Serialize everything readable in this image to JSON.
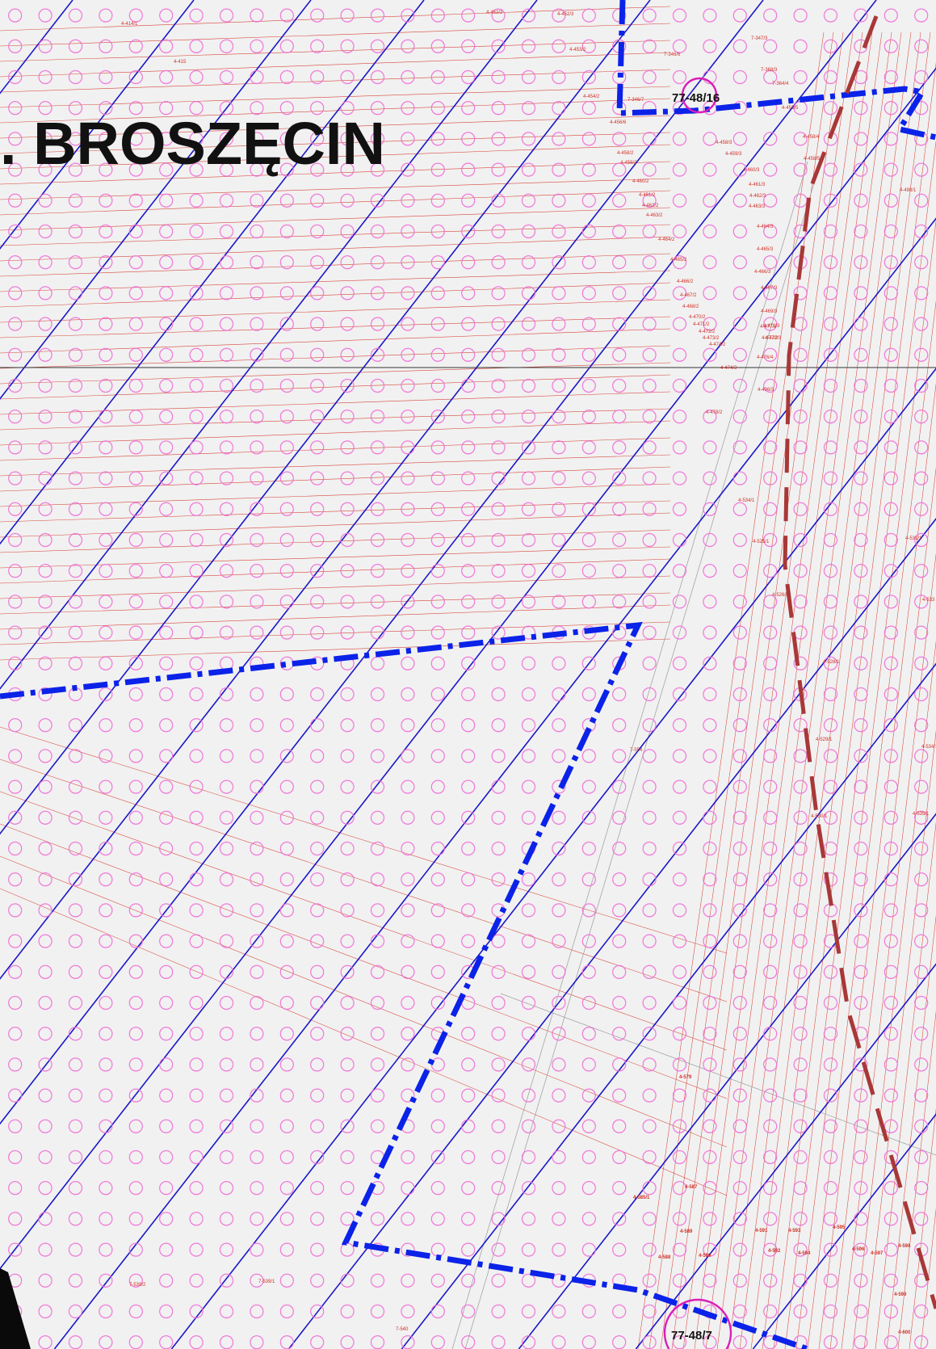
{
  "map": {
    "title": ". BROSZĘCIN",
    "colors": {
      "background": "#f1f1f1",
      "circle_pattern": "#f06bd6",
      "hatch_lines": "#1b17c8",
      "boundary_dash_dot": "#0b22e8",
      "boundary_dashed": "#a83838",
      "parcel_lines": "#d8473c",
      "marker_circle": "#d81fb8",
      "text": "#111111"
    },
    "markers": [
      {
        "label": "77-48/16"
      },
      {
        "label": "77-48/7"
      }
    ],
    "parcel_labels": [
      "4-414/1",
      "4-415",
      "4-452/2",
      "4-452/3",
      "4-453/2",
      "4-454/2",
      "7-346/6",
      "7-346/7",
      "7-347/3",
      "4-456/6",
      "4-456/5",
      "7-368/3",
      "7-364/4",
      "4-458/3",
      "4-459/3",
      "4-458/2",
      "4-459/2",
      "4-460/2",
      "4-461/2",
      "4-462/2",
      "4-463/2",
      "4-464/2",
      "4-465/2",
      "4-466/2",
      "4-467/2",
      "4-468/2",
      "4-470/2",
      "4-471/2",
      "4-472/2",
      "4-473/2",
      "4-474/2",
      "4-458/4",
      "4-458/5",
      "4-460/3",
      "4-461/3",
      "4-462/3",
      "4-463/3",
      "4-464/3",
      "4-465/3",
      "4-466/3",
      "4-467/3",
      "4-469/3",
      "4-471/3",
      "4-472/3",
      "4-474/3",
      "4-476/4",
      "4-477/2",
      "4-477/3",
      "4-478/2",
      "4-496/3",
      "4-498/1",
      "4-534/1",
      "4-525/1",
      "4-526/1",
      "4-528/1",
      "4-529/1",
      "4-530/1",
      "4-531/1",
      "4-533",
      "4-534/1",
      "4-535/1",
      "7-554",
      "4-579",
      "4-585/1",
      "4-587",
      "4-589",
      "4-588",
      "4-590",
      "4-591",
      "4-592",
      "4-593",
      "4-594",
      "4-595",
      "4-596",
      "4-597",
      "4-598",
      "4-599",
      "4-600",
      "7-539/2",
      "7-539/1",
      "7-540"
    ]
  }
}
